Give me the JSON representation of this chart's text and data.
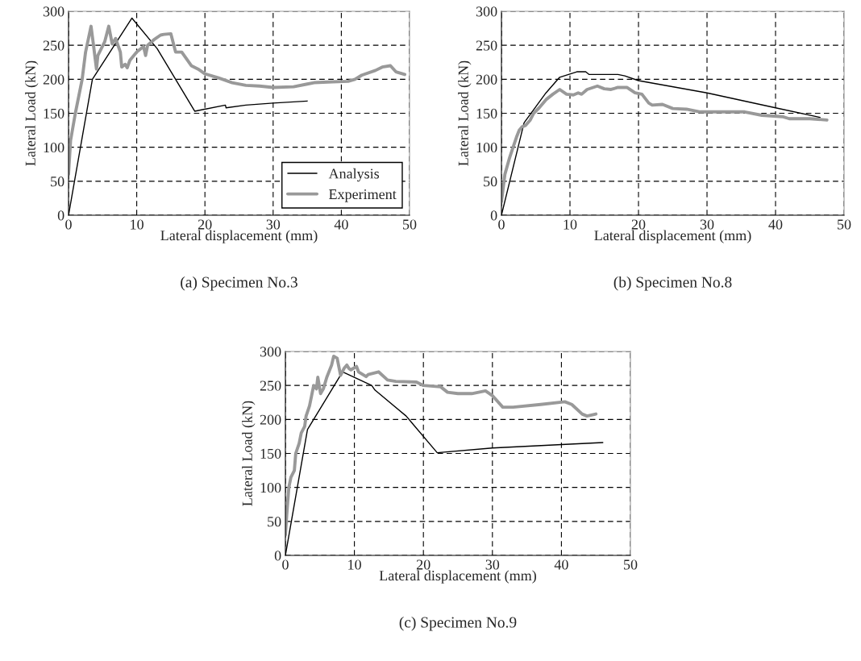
{
  "chart_data": [
    {
      "type": "line",
      "title": "(a) Specimen No.3",
      "xlabel": "Lateral displacement (mm)",
      "ylabel": "Lateral Load (kN)",
      "xlim": [
        0,
        50
      ],
      "ylim": [
        0,
        300
      ],
      "xticks": [
        0,
        10,
        20,
        30,
        40,
        50
      ],
      "yticks": [
        0,
        50,
        100,
        150,
        200,
        250,
        300
      ],
      "grid": true,
      "legend": "bottom right",
      "series": [
        {
          "name": "Analysis",
          "color": "#000000",
          "x": [
            0,
            3.5,
            9.3,
            13,
            18.5,
            23,
            23.1,
            26,
            30,
            35
          ],
          "values": [
            0,
            200,
            290,
            245,
            153,
            162,
            158,
            162,
            165,
            168
          ]
        },
        {
          "name": "Experiment",
          "color": "#999999",
          "x": [
            0,
            0.3,
            1,
            2,
            2.5,
            3.3,
            3.6,
            4.1,
            4.3,
            5.3,
            5.9,
            6.4,
            6.9,
            7.6,
            7.8,
            8.3,
            8.6,
            9,
            10,
            11,
            11.3,
            11.6,
            12.5,
            13.5,
            14,
            15,
            15.7,
            16.6,
            18,
            19,
            20,
            22,
            24,
            26,
            28,
            30,
            33,
            35,
            36,
            38,
            41,
            42,
            43,
            45,
            46,
            47.2,
            48,
            49.3
          ],
          "values": [
            60,
            110,
            150,
            200,
            240,
            278,
            255,
            215,
            235,
            255,
            278,
            252,
            260,
            240,
            218,
            222,
            217,
            228,
            240,
            248,
            235,
            250,
            258,
            265,
            266,
            267,
            240,
            240,
            220,
            215,
            208,
            202,
            195,
            191,
            190,
            188,
            189,
            193,
            195,
            196,
            197,
            200,
            206,
            213,
            218,
            220,
            211,
            207
          ]
        }
      ]
    },
    {
      "type": "line",
      "title": "(b) Specimen No.8",
      "xlabel": "Lateral displacement (mm)",
      "ylabel": "Lateral Load (kN)",
      "xlim": [
        0,
        50
      ],
      "ylim": [
        0,
        300
      ],
      "xticks": [
        0,
        10,
        20,
        30,
        40,
        50
      ],
      "yticks": [
        0,
        50,
        100,
        150,
        200,
        250,
        300
      ],
      "grid": true,
      "series": [
        {
          "color": "#000000",
          "x": [
            0,
            3.3,
            6.5,
            8.5,
            11,
            12.3,
            12.8,
            17,
            18,
            20,
            30,
            40,
            46.5
          ],
          "values": [
            0,
            136,
            180,
            203,
            211,
            211,
            207,
            207,
            205,
            198,
            180,
            158,
            144
          ]
        },
        {
          "color": "#999999",
          "x": [
            0,
            0.5,
            1.2,
            1.7,
            2.2,
            2.6,
            3,
            3.5,
            4.2,
            4.7,
            5.5,
            6.5,
            7.5,
            8.5,
            9.5,
            10.5,
            11.2,
            11.7,
            12.5,
            14,
            15,
            16,
            17,
            18.3,
            19.5,
            20.5,
            21.5,
            22,
            23.5,
            25,
            27,
            29,
            32,
            35.5,
            38,
            41,
            42,
            45,
            47.5
          ],
          "values": [
            20,
            60,
            85,
            100,
            115,
            125,
            130,
            132,
            140,
            150,
            158,
            170,
            178,
            185,
            178,
            177,
            180,
            178,
            185,
            190,
            186,
            185,
            188,
            188,
            180,
            178,
            165,
            162,
            163,
            157,
            156,
            152,
            152,
            152,
            147,
            145,
            142,
            142,
            140
          ]
        }
      ]
    },
    {
      "type": "line",
      "title": "(c) Specimen No.9",
      "xlabel": "Lateral displacement (mm)",
      "ylabel": "Lateral Load (kN)",
      "xlim": [
        0,
        50
      ],
      "ylim": [
        0,
        300
      ],
      "xticks": [
        0,
        10,
        20,
        30,
        40,
        50
      ],
      "yticks": [
        0,
        50,
        100,
        150,
        200,
        250,
        300
      ],
      "grid": true,
      "series": [
        {
          "color": "#000000",
          "x": [
            0,
            3.2,
            7.8,
            8.3,
            12.5,
            13,
            17.5,
            22,
            30,
            40,
            46
          ],
          "values": [
            0,
            185,
            262,
            270,
            250,
            243,
            205,
            151,
            158,
            163,
            166
          ]
        },
        {
          "color": "#999999",
          "x": [
            0,
            0.2,
            0.5,
            0.8,
            1.3,
            1.5,
            2,
            2.3,
            2.8,
            3,
            3.5,
            3.8,
            4.1,
            4.5,
            4.7,
            5.1,
            5.5,
            6,
            6.7,
            7,
            7.5,
            7.8,
            8,
            8.5,
            8.9,
            9.2,
            9.5,
            10.3,
            10.6,
            11.7,
            12,
            13.5,
            14.8,
            16,
            19,
            20,
            22.5,
            23.5,
            25,
            27,
            29,
            30,
            31.5,
            33,
            37,
            40.5,
            41.5,
            43,
            43.7,
            45
          ],
          "values": [
            30,
            60,
            100,
            115,
            125,
            150,
            165,
            180,
            190,
            205,
            220,
            235,
            250,
            245,
            262,
            238,
            245,
            262,
            280,
            293,
            290,
            275,
            265,
            275,
            280,
            275,
            273,
            278,
            270,
            263,
            266,
            270,
            258,
            256,
            255,
            250,
            248,
            240,
            238,
            238,
            242,
            235,
            218,
            218,
            222,
            226,
            222,
            208,
            205,
            208
          ]
        }
      ]
    }
  ]
}
